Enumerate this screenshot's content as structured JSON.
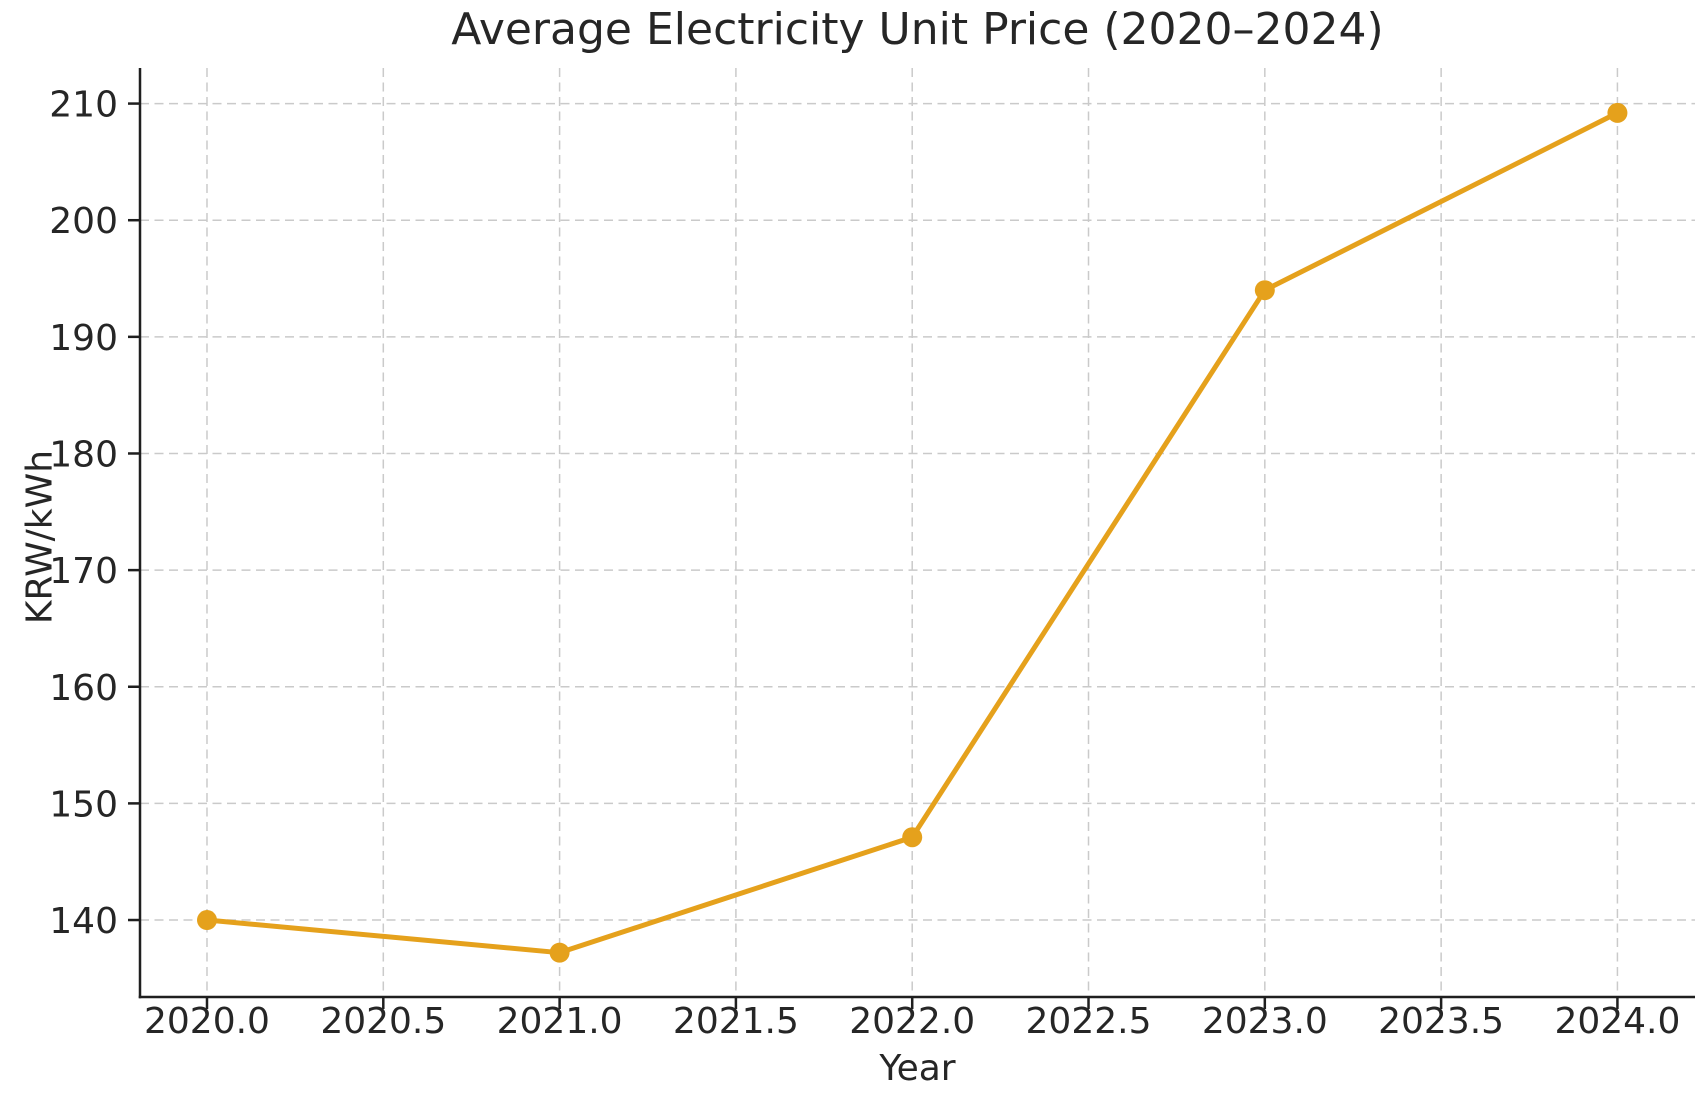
{
  "chart_data": {
    "type": "line",
    "title": "Average Electricity Unit Price (2020–2024)",
    "xlabel": "Year",
    "ylabel": "KRW/kWh",
    "x": [
      2020,
      2021,
      2022,
      2023,
      2024
    ],
    "y": [
      140.0,
      137.2,
      147.1,
      194.0,
      209.2
    ],
    "xlim": [
      2019.81,
      2024.22
    ],
    "ylim": [
      133.4,
      213.05
    ],
    "xticks": {
      "values": [
        2020.0,
        2020.5,
        2021.0,
        2021.5,
        2022.0,
        2022.5,
        2023.0,
        2023.5,
        2024.0
      ],
      "labels": [
        "2020.0",
        "2020.5",
        "2021.0",
        "2021.5",
        "2022.0",
        "2022.5",
        "2023.0",
        "2023.5",
        "2024.0"
      ]
    },
    "yticks": {
      "values": [
        140,
        150,
        160,
        170,
        180,
        190,
        200,
        210
      ],
      "labels": [
        "140",
        "150",
        "160",
        "170",
        "180",
        "190",
        "200",
        "210"
      ]
    },
    "grid": true,
    "grid_style": "dashed",
    "legend": false,
    "marker": "circle",
    "colors": {
      "line": "#E5A11C",
      "grid": "#cacaca",
      "spine": "#1f1f1f",
      "text": "#262626",
      "background": "#ffffff"
    }
  }
}
